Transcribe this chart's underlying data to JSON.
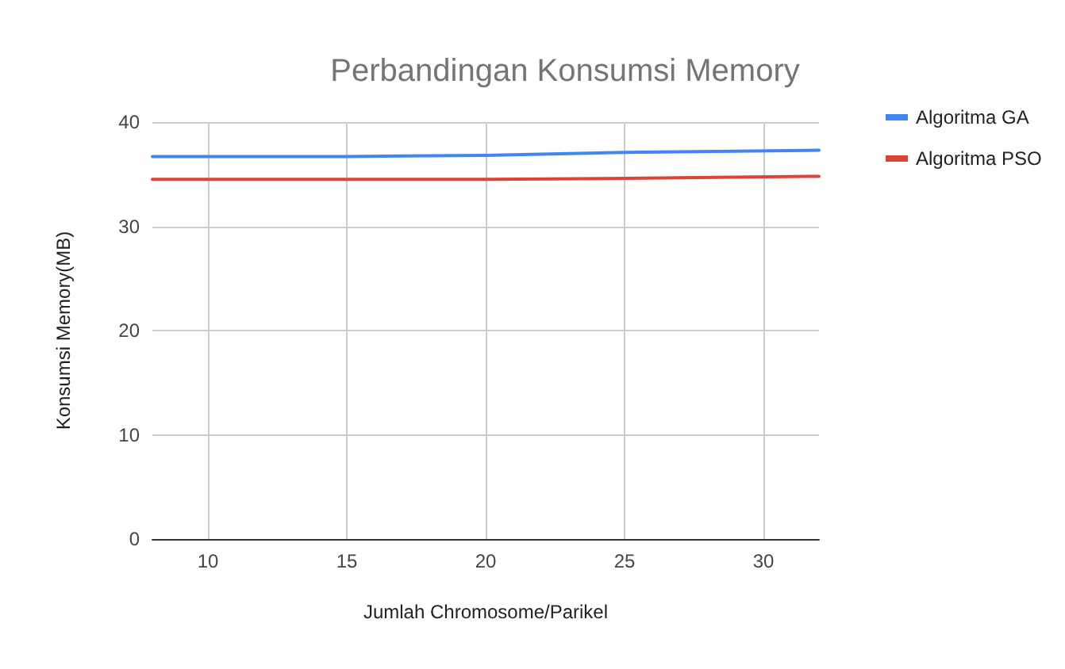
{
  "chart_data": {
    "type": "line",
    "title": "Perbandingan Konsumsi Memory",
    "xlabel": "Jumlah Chromosome/Parikel",
    "ylabel": "Konsumsi Memory(MB)",
    "x": [
      8,
      15,
      20,
      25,
      32
    ],
    "series": [
      {
        "name": "Algoritma GA",
        "color": "#4285f4",
        "values": [
          36.7,
          36.7,
          36.8,
          37.1,
          37.3
        ]
      },
      {
        "name": "Algoritma PSO",
        "color": "#db4437",
        "values": [
          34.5,
          34.5,
          34.5,
          34.6,
          34.8
        ]
      }
    ],
    "xlim": [
      8,
      32
    ],
    "xticks": [
      10,
      15,
      20,
      25,
      30
    ],
    "ylim": [
      0,
      40
    ],
    "yticks": [
      0,
      10,
      20,
      30,
      40
    ],
    "grid": true,
    "legend": "top right",
    "marker": "none",
    "line_style": "solid"
  }
}
